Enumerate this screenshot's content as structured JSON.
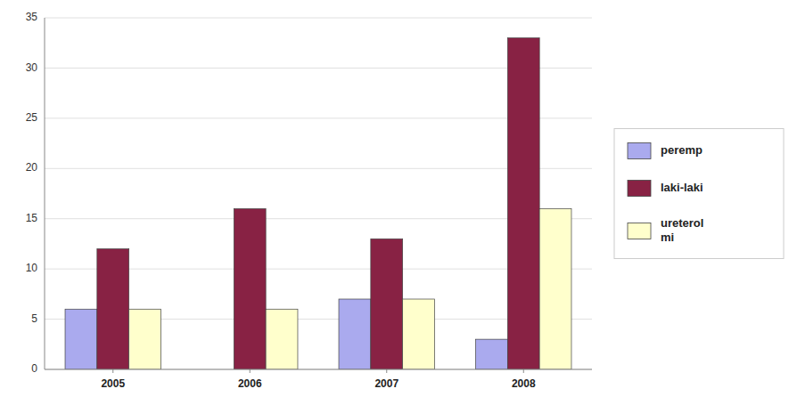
{
  "chart_data": {
    "type": "bar",
    "categories": [
      "2005",
      "2006",
      "2007",
      "2008"
    ],
    "series": [
      {
        "name": "peremp",
        "color": "#aaaaee",
        "values": [
          6,
          0,
          7,
          3
        ]
      },
      {
        "name": "laki-laki",
        "color": "#882244",
        "values": [
          12,
          16,
          13,
          33
        ]
      },
      {
        "name": "ureterol\nmi",
        "color": "#ffffcc",
        "values": [
          6,
          6,
          7,
          16
        ]
      }
    ],
    "ylim": [
      0,
      35
    ],
    "yticks": [
      0,
      5,
      10,
      15,
      20,
      25,
      30,
      35
    ],
    "grid": true,
    "legend": "right"
  }
}
